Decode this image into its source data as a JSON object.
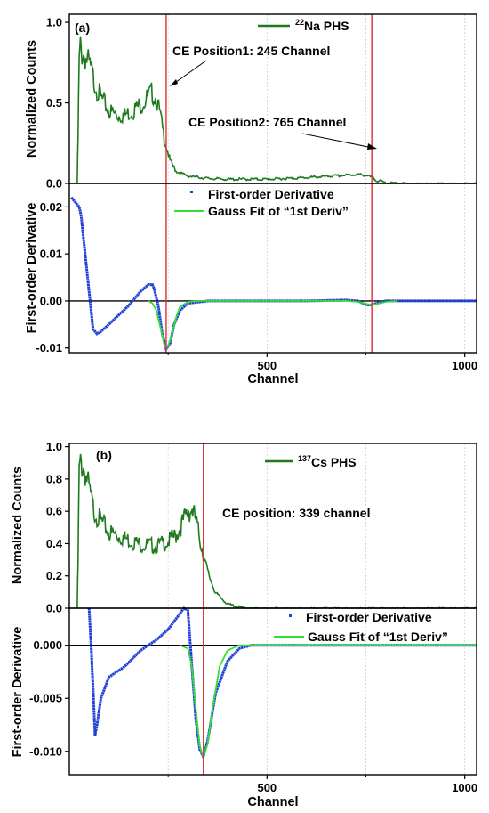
{
  "panel_a": {
    "label": "(a)",
    "x_label": "Channel",
    "top_y_label": "Normalized Counts",
    "bottom_y_label": "First-order Derivative",
    "legend_top": {
      "prefix": "22",
      "text": "Na PHS"
    },
    "legend_bottom": [
      "First-order Derivative",
      "Gauss Fit of “1st Deriv”"
    ],
    "annotations": [
      "CE Position1: 245 Channel",
      "CE Position2: 765 Channel"
    ],
    "x_ticks": [
      "500",
      "1000"
    ],
    "top_y_ticks": [
      "0.0",
      "0.5",
      "1.0"
    ],
    "bottom_y_ticks": [
      "-0.01",
      "0.00",
      "0.01",
      "0.02"
    ]
  },
  "panel_b": {
    "label": "(b)",
    "x_label": "Channel",
    "top_y_label": "Normalized Counts",
    "bottom_y_label": "First-order Derivative",
    "legend_top": {
      "prefix": "137",
      "text": "Cs PHS"
    },
    "legend_bottom": [
      "First-order Derivative",
      "Gauss Fit of “1st Deriv”"
    ],
    "annotations": [
      "CE position: 339 channel"
    ],
    "x_ticks": [
      "500",
      "1000"
    ],
    "top_y_ticks": [
      "0.0",
      "0.2",
      "0.4",
      "0.6",
      "0.8",
      "1.0"
    ],
    "bottom_y_ticks": [
      "-0.010",
      "-0.005",
      "0.000"
    ]
  },
  "chart_data": [
    {
      "type": "line",
      "panel": "a-top",
      "xlim": [
        0,
        1030
      ],
      "ylim": [
        0,
        1.05
      ],
      "ylabel": "Normalized Counts",
      "series": [
        {
          "name": "22Na PHS",
          "color": "#1f7a1f",
          "x": [
            20,
            22,
            25,
            28,
            32,
            40,
            50,
            60,
            80,
            100,
            120,
            140,
            160,
            180,
            200,
            210,
            220,
            230,
            240,
            245,
            255,
            270,
            300,
            350,
            400,
            500,
            600,
            700,
            730,
            750,
            765,
            780,
            800,
            820,
            850,
            900,
            950,
            1000,
            1030
          ],
          "y": [
            0,
            0.3,
            0.8,
            0.9,
            0.86,
            0.84,
            0.78,
            0.7,
            0.56,
            0.48,
            0.45,
            0.45,
            0.48,
            0.52,
            0.57,
            0.6,
            0.56,
            0.45,
            0.3,
            0.25,
            0.15,
            0.08,
            0.05,
            0.035,
            0.03,
            0.03,
            0.04,
            0.055,
            0.06,
            0.055,
            0.04,
            0.02,
            0.01,
            0.005,
            0.002,
            0,
            0,
            0,
            0
          ]
        }
      ],
      "vlines": [
        245,
        765
      ]
    },
    {
      "type": "scatter",
      "panel": "a-bottom",
      "xlim": [
        0,
        1030
      ],
      "ylim": [
        -0.011,
        0.025
      ],
      "ylabel": "First-order Derivative",
      "series": [
        {
          "name": "First-order Derivative",
          "color": "#1f3fd6",
          "x": [
            5,
            15,
            25,
            30,
            40,
            50,
            60,
            70,
            80,
            100,
            150,
            180,
            200,
            210,
            215,
            225,
            235,
            245,
            255,
            265,
            280,
            300,
            350,
            400,
            500,
            600,
            700,
            730,
            750,
            760,
            765,
            780,
            800,
            850,
            900,
            950,
            1000,
            1030
          ],
          "y": [
            0.022,
            0.021,
            0.02,
            0.018,
            0.01,
            0.002,
            -0.006,
            -0.007,
            -0.0065,
            -0.005,
            -0.001,
            0.002,
            0.0035,
            0.0035,
            0.0025,
            -0.001,
            -0.007,
            -0.0102,
            -0.009,
            -0.005,
            -0.002,
            -0.0005,
            0,
            0,
            0,
            0,
            0.0002,
            0,
            -0.0008,
            -0.0009,
            -0.0008,
            -0.0004,
            0,
            0,
            0,
            0,
            0,
            0
          ]
        },
        {
          "name": "Gauss Fit of “1st Deriv”",
          "color": "#33dd33",
          "x": [
            200,
            210,
            220,
            230,
            240,
            245,
            250,
            260,
            270,
            280,
            300,
            330,
            350,
            700,
            730,
            750,
            765,
            780,
            800,
            830
          ],
          "y": [
            0,
            -0.0005,
            -0.002,
            -0.0055,
            -0.0092,
            -0.01,
            -0.0095,
            -0.007,
            -0.0035,
            -0.0012,
            -0.0002,
            0,
            0,
            0,
            -0.0002,
            -0.0006,
            -0.0008,
            -0.0006,
            -0.0002,
            0
          ]
        }
      ],
      "vlines": [
        245,
        765
      ]
    },
    {
      "type": "line",
      "panel": "b-top",
      "xlim": [
        0,
        1030
      ],
      "ylim": [
        0,
        1.02
      ],
      "ylabel": "Normalized Counts",
      "series": [
        {
          "name": "137Cs PHS",
          "color": "#1f7a1f",
          "x": [
            20,
            22,
            25,
            30,
            40,
            50,
            60,
            80,
            100,
            140,
            180,
            220,
            250,
            270,
            290,
            300,
            310,
            320,
            330,
            339,
            350,
            370,
            400,
            430,
            460,
            500,
            600,
            800,
            1030
          ],
          "y": [
            0,
            0.3,
            0.9,
            0.96,
            0.9,
            0.78,
            0.66,
            0.57,
            0.5,
            0.46,
            0.42,
            0.41,
            0.44,
            0.48,
            0.58,
            0.64,
            0.65,
            0.58,
            0.46,
            0.35,
            0.24,
            0.1,
            0.03,
            0.01,
            0,
            0,
            0,
            0,
            0
          ]
        }
      ],
      "vlines": [
        339
      ]
    },
    {
      "type": "scatter",
      "panel": "b-bottom",
      "xlim": [
        0,
        1030
      ],
      "ylim": [
        -0.0122,
        0.0035
      ],
      "ylabel": "First-order Derivative",
      "series": [
        {
          "name": "First-order Derivative",
          "color": "#1f3fd6",
          "x": [
            50,
            55,
            60,
            65,
            70,
            80,
            100,
            140,
            180,
            220,
            250,
            270,
            290,
            300,
            310,
            320,
            330,
            339,
            350,
            370,
            400,
            430,
            460,
            500,
            600,
            800,
            1030
          ],
          "y": [
            0.0035,
            0.0,
            -0.004,
            -0.0085,
            -0.0075,
            -0.005,
            -0.003,
            -0.002,
            -0.0005,
            0.0005,
            0.0015,
            0.0025,
            0.0035,
            0.0033,
            -0.002,
            -0.007,
            -0.0098,
            -0.0105,
            -0.009,
            -0.0045,
            -0.0015,
            -0.0003,
            0,
            0,
            0,
            0,
            0
          ]
        },
        {
          "name": "Gauss Fit of “1st Deriv”",
          "color": "#33dd33",
          "x": [
            280,
            300,
            310,
            320,
            330,
            339,
            350,
            360,
            380,
            400,
            430,
            460,
            1030
          ],
          "y": [
            0,
            -0.0003,
            -0.002,
            -0.006,
            -0.0095,
            -0.0105,
            -0.0093,
            -0.0065,
            -0.002,
            -0.0005,
            0,
            0,
            0
          ]
        }
      ],
      "vlines": [
        339
      ]
    }
  ]
}
